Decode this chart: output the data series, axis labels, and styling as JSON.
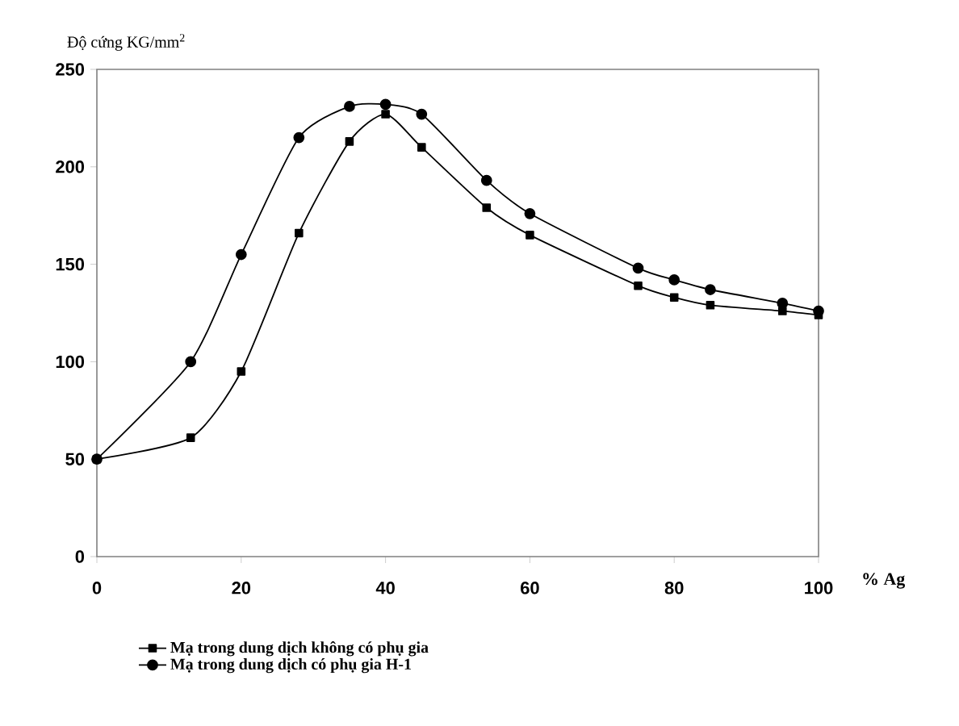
{
  "chart_data": {
    "type": "line",
    "ylabel": "Độ cứng KG/mm$^{2}$",
    "xlabel": "% Ag",
    "x": [
      0,
      13,
      20,
      28,
      35,
      40,
      45,
      54,
      60,
      75,
      80,
      85,
      95,
      100
    ],
    "series": [
      {
        "name": "Mạ trong dung dịch không có phụ gia",
        "color": "#000000",
        "marker": "square",
        "values": [
          50,
          61,
          95,
          166,
          213,
          227,
          210,
          179,
          165,
          139,
          133,
          129,
          126,
          124
        ]
      },
      {
        "name": "Mạ trong dung dịch có phụ gia H-1",
        "color": "#000000",
        "marker": "circle",
        "values": [
          50,
          100,
          155,
          215,
          231,
          232,
          227,
          193,
          176,
          148,
          142,
          137,
          130,
          126
        ]
      }
    ],
    "xlim": [
      0,
      100
    ],
    "ylim": [
      0,
      250
    ],
    "xticks": [
      0,
      20,
      40,
      60,
      80,
      100
    ],
    "yticks": [
      0,
      50,
      100,
      150,
      200,
      250
    ],
    "grid": false,
    "legend": "bottom",
    "line_style": "solid"
  }
}
